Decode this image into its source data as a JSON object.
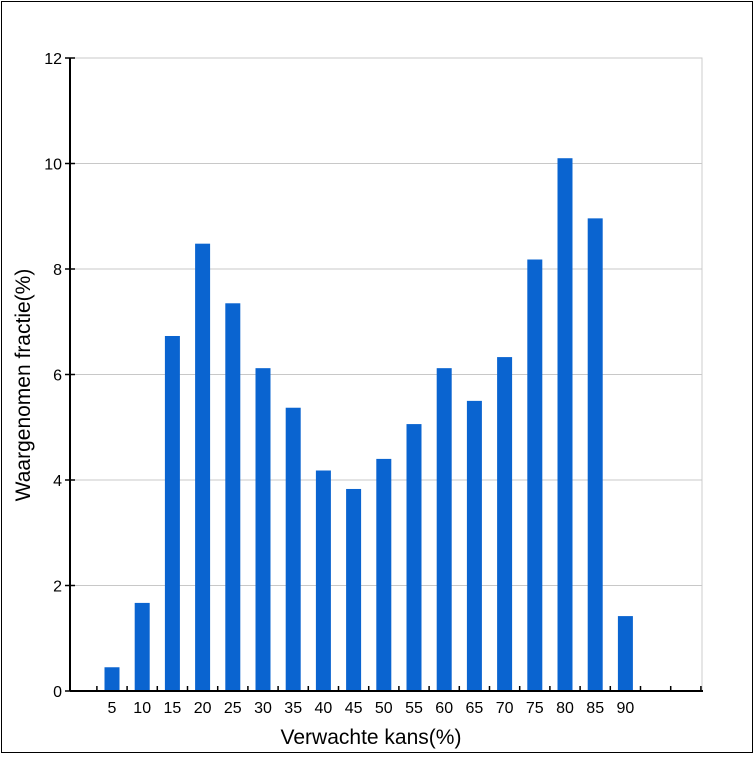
{
  "chart_data": {
    "type": "bar",
    "title": "",
    "xlabel": "Verwachte kans(%)",
    "ylabel": "Waargenomen fractie(%)",
    "categories": [
      "5",
      "10",
      "15",
      "20",
      "25",
      "30",
      "35",
      "40",
      "45",
      "50",
      "55",
      "60",
      "65",
      "70",
      "75",
      "80",
      "85",
      "90"
    ],
    "values": [
      0.45,
      1.67,
      6.73,
      8.48,
      7.35,
      6.12,
      5.37,
      4.18,
      3.83,
      4.4,
      5.06,
      6.12,
      5.5,
      6.33,
      8.18,
      10.1,
      8.96,
      1.42
    ],
    "yticks": [
      "0",
      "2",
      "4",
      "6",
      "8",
      "10",
      "12"
    ],
    "ylim": [
      0,
      12
    ],
    "grid": true,
    "bar_color": "#0a64d0"
  }
}
